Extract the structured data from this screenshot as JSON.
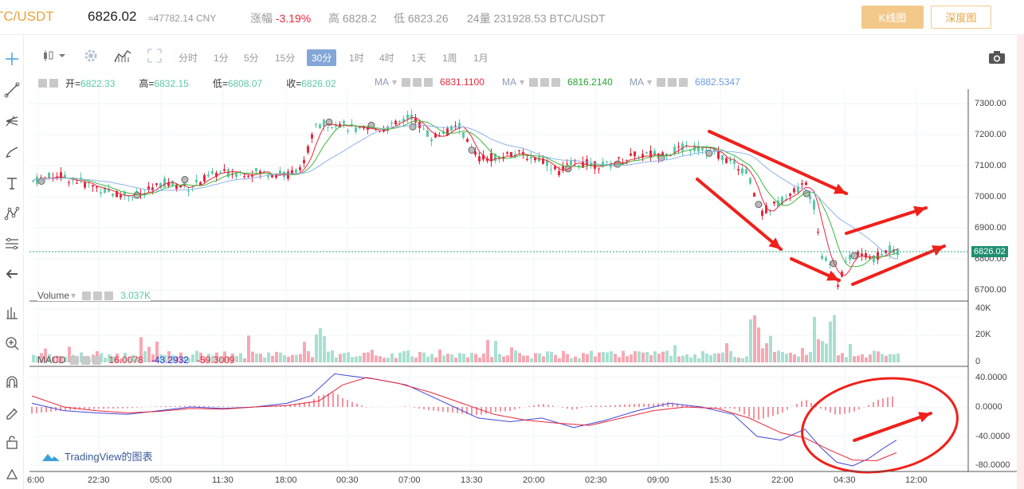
{
  "header": {
    "pair": "TC/USDT",
    "price": "6826.02",
    "cny": "≈47782.14 CNY",
    "change_label": "涨幅",
    "change_value": "-3.19%",
    "high_label": "高",
    "high_value": "6828.2",
    "low_label": "低",
    "low_value": "6823.26",
    "vol24_label": "24量",
    "vol24_value": "231928.53 BTC/USDT",
    "kline_button": "K线图",
    "depth_button": "深度图"
  },
  "timeframes": [
    "分时",
    "1分",
    "5分",
    "15分",
    "30分",
    "1时",
    "4时",
    "1天",
    "1周",
    "1月"
  ],
  "active_timeframe": "30分",
  "ohlc": {
    "open_label": "开=",
    "open": "6822.33",
    "high_label": "高=",
    "high": "6832.15",
    "low_label": "低=",
    "low": "6808.07",
    "close_label": "收=",
    "close": "6826.02"
  },
  "ma": [
    {
      "label": "MA",
      "value": "6831.1100",
      "color": "#e8283c"
    },
    {
      "label": "MA",
      "value": "6816.2140",
      "color": "#25a32f"
    },
    {
      "label": "MA",
      "value": "6882.5347",
      "color": "#6d9ce0"
    }
  ],
  "volume": {
    "label": "Volume",
    "value": "3.037K"
  },
  "macd": {
    "label": "MACD",
    "v1": "16.0078",
    "v2": "-43.2932",
    "v3": "-59.3009"
  },
  "price_axis": [
    "7300.00",
    "7200.00",
    "7100.00",
    "7000.00",
    "6900.00",
    "6800.00",
    "6700.00"
  ],
  "current_price_tag": "6826.02",
  "volume_axis": [
    "40K",
    "20K",
    "0"
  ],
  "macd_axis": [
    "40.0000",
    "0.0000",
    "-40.0000",
    "-80.0000"
  ],
  "time_axis": [
    "6:00",
    "22:30",
    "05:00",
    "11:30",
    "18:00",
    "00:30",
    "07:00",
    "13:30",
    "20:00",
    "02:30",
    "09:00",
    "15:30",
    "22:00",
    "04:30",
    "12:00"
  ],
  "brand": "TradingView的图表",
  "colors": {
    "up": "#5bc8a8",
    "down": "#e8283c",
    "accent": "#f3c98a",
    "active_tf": "#84a6d6",
    "annot": "#f0201a"
  }
}
